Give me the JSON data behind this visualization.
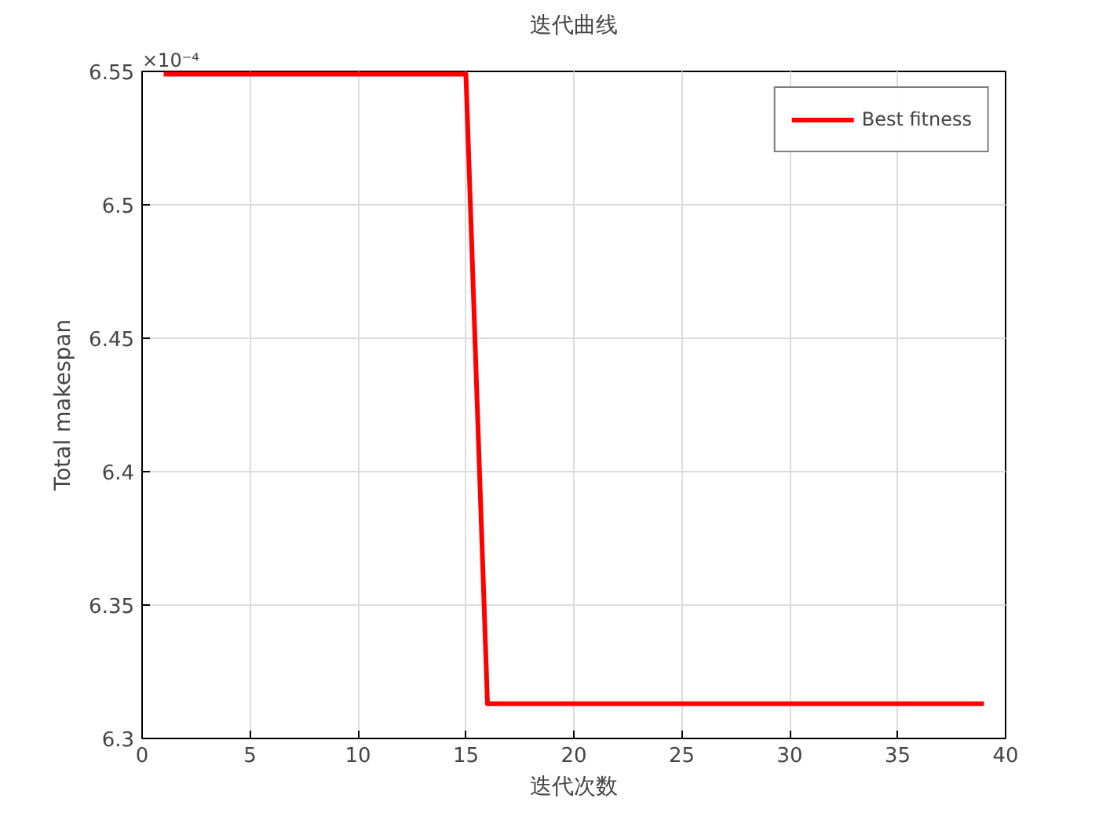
{
  "chart_data": {
    "type": "line",
    "title": "迭代曲线",
    "xlabel": "迭代次数",
    "ylabel": "Total makespan",
    "annotations": [
      "×10⁻⁴"
    ],
    "series": [
      {
        "name": "Best fitness",
        "color": "#ff0000",
        "x": [
          1,
          15,
          16,
          39
        ],
        "values": [
          6.549,
          6.549,
          6.313,
          6.313
        ]
      }
    ],
    "xlim": [
      0,
      40
    ],
    "xticks": [
      0,
      5,
      10,
      15,
      20,
      25,
      30,
      35,
      40
    ],
    "ylim": [
      6.3,
      6.55
    ],
    "yticks": [
      6.3,
      6.35,
      6.4,
      6.45,
      6.5,
      6.55
    ],
    "grid": true,
    "legend": "top right",
    "marker": "none",
    "line_style": "solid"
  }
}
